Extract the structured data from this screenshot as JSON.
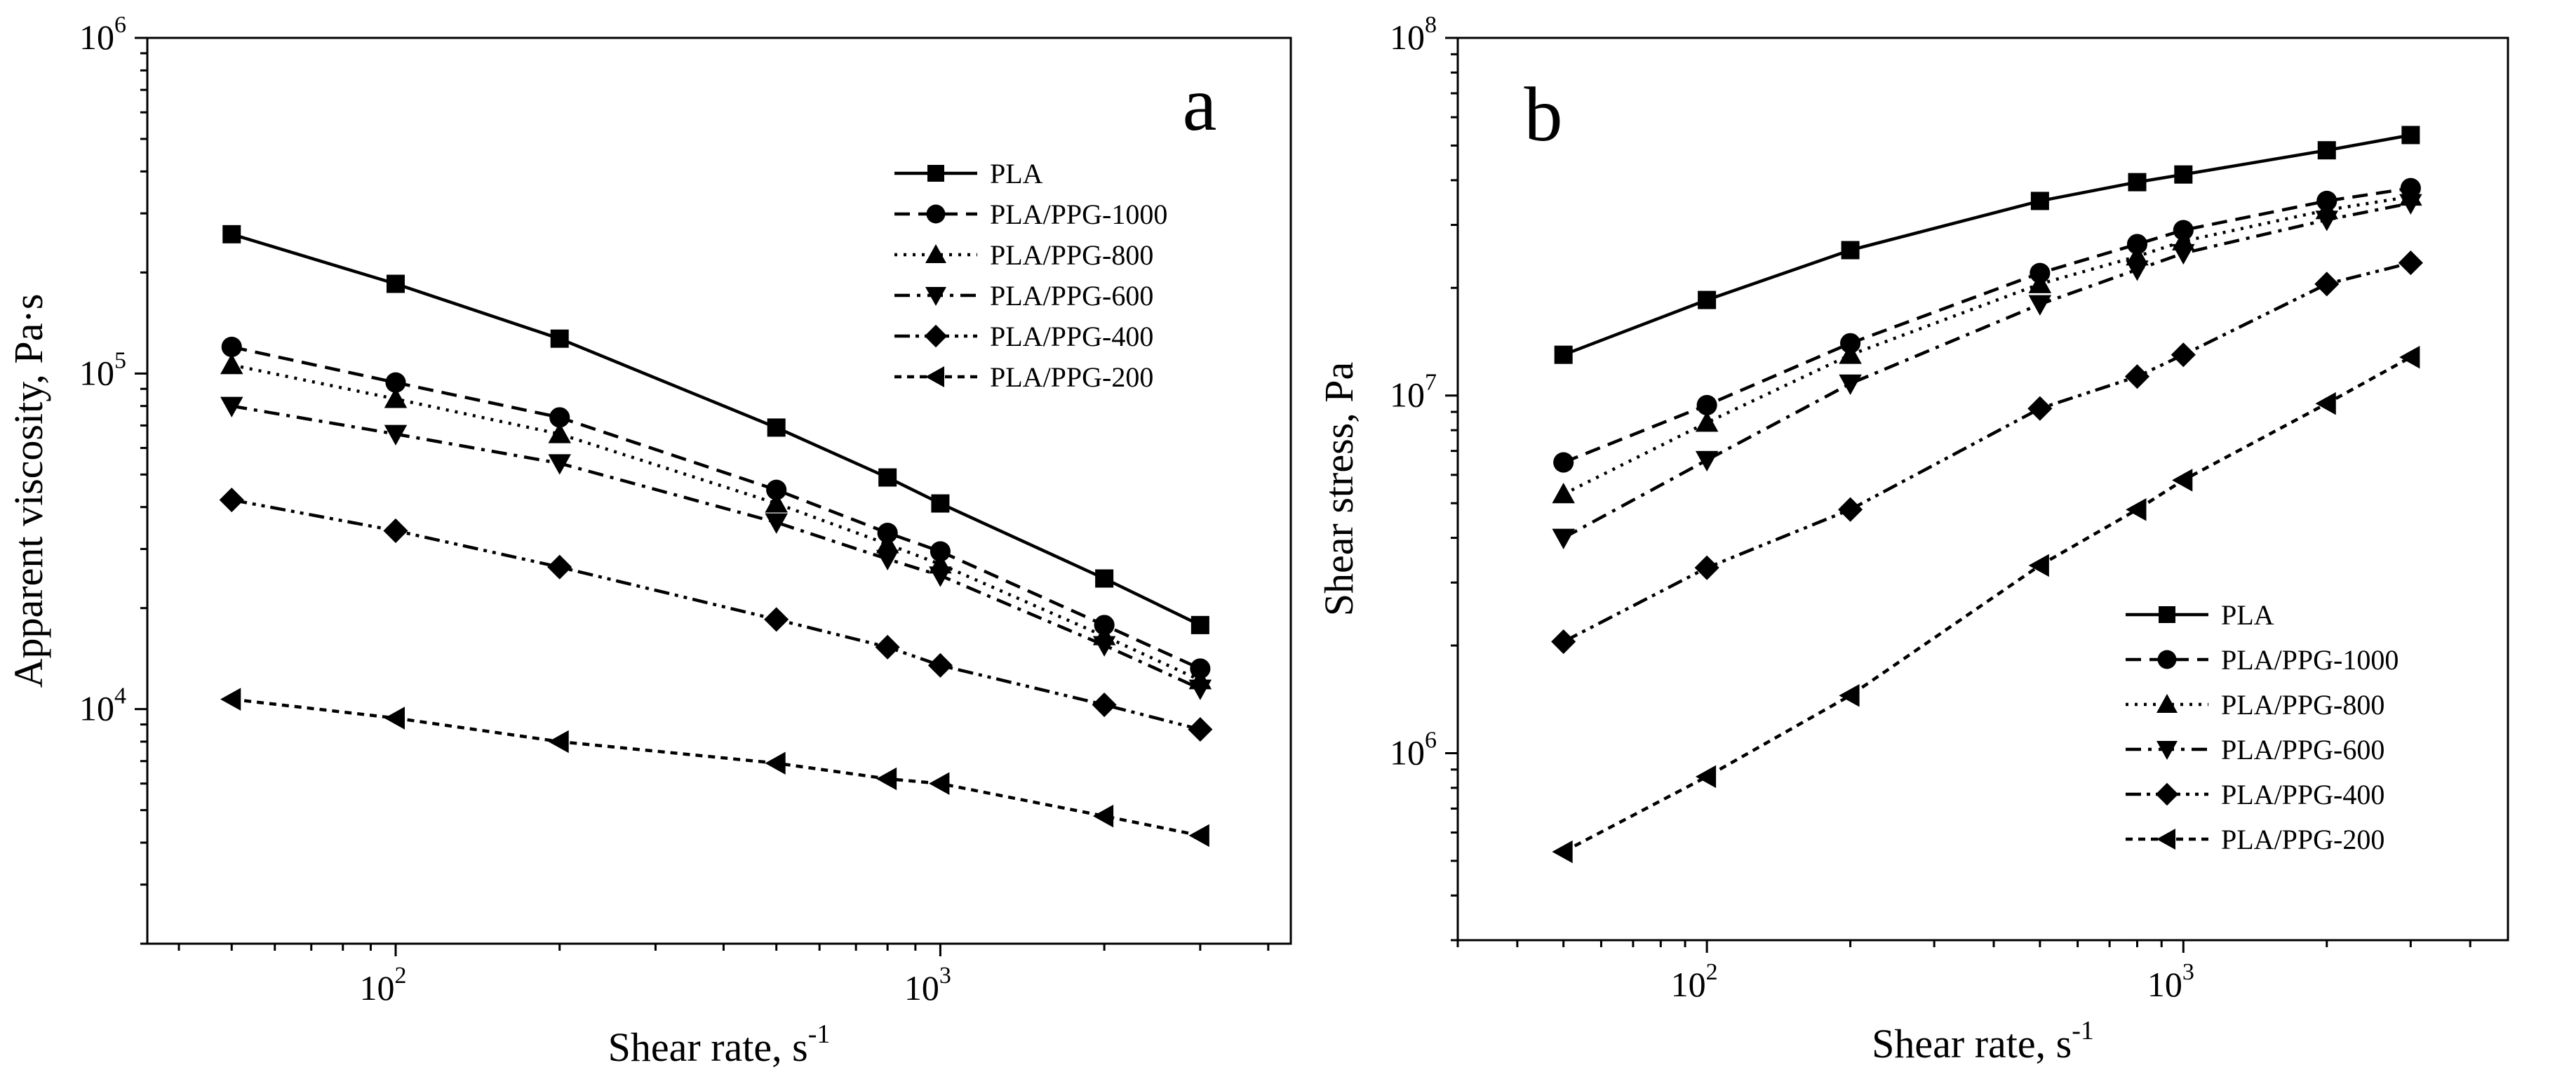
{
  "colors": {
    "ink": "#000000",
    "background": "#ffffff"
  },
  "chart_data": [
    {
      "type": "line",
      "panel_label": "a",
      "xlabel": "Shear rate, s",
      "xlabel_sup": "-1",
      "ylabel": "Apparent viscosity, Pa·s",
      "xscale": "log",
      "yscale": "log",
      "xlim": [
        35,
        4400
      ],
      "ylim": [
        2000,
        1000000
      ],
      "x_ticks": [
        {
          "value": 100,
          "base": "10",
          "exp": "2"
        },
        {
          "value": 1000,
          "base": "10",
          "exp": "3"
        }
      ],
      "y_ticks": [
        {
          "value": 10000,
          "base": "10",
          "exp": "4"
        },
        {
          "value": 100000,
          "base": "10",
          "exp": "5"
        },
        {
          "value": 1000000,
          "base": "10",
          "exp": "6"
        }
      ],
      "legend_position": "top-right",
      "x": [
        50,
        100,
        200,
        500,
        800,
        1000,
        2000,
        3000
      ],
      "series": [
        {
          "name": "PLA",
          "marker": "square",
          "dash": "solid",
          "values": [
            260000,
            185000,
            127000,
            69000,
            49000,
            41000,
            24500,
            17800
          ]
        },
        {
          "name": "PLA/PPG-1000",
          "marker": "circle",
          "dash": "dash",
          "values": [
            120000,
            94000,
            74000,
            45000,
            33500,
            29500,
            17800,
            13200
          ]
        },
        {
          "name": "PLA/PPG-800",
          "marker": "triangle-up",
          "dash": "dot",
          "values": [
            106000,
            84000,
            66000,
            41000,
            31000,
            27000,
            16500,
            12200
          ]
        },
        {
          "name": "PLA/PPG-600",
          "marker": "triangle-down",
          "dash": "dashdot",
          "values": [
            80000,
            66000,
            54000,
            36000,
            28000,
            25000,
            15500,
            11500
          ]
        },
        {
          "name": "PLA/PPG-400",
          "marker": "diamond",
          "dash": "dashdotdot",
          "values": [
            42000,
            34000,
            26500,
            18500,
            15300,
            13500,
            10300,
            8700
          ]
        },
        {
          "name": "PLA/PPG-200",
          "marker": "triangle-left",
          "dash": "shortdash",
          "values": [
            10700,
            9400,
            8000,
            6900,
            6200,
            6000,
            4800,
            4200
          ]
        }
      ]
    },
    {
      "type": "line",
      "panel_label": "b",
      "xlabel": "Shear rate, s",
      "xlabel_sup": "-1",
      "ylabel": "Shear stress, Pa",
      "xscale": "log",
      "yscale": "log",
      "xlim": [
        30,
        4800
      ],
      "ylim": [
        300000,
        100000000
      ],
      "x_ticks": [
        {
          "value": 100,
          "base": "10",
          "exp": "2"
        },
        {
          "value": 1000,
          "base": "10",
          "exp": "3"
        }
      ],
      "y_ticks": [
        {
          "value": 1000000,
          "base": "10",
          "exp": "6"
        },
        {
          "value": 10000000,
          "base": "10",
          "exp": "7"
        },
        {
          "value": 100000000,
          "base": "10",
          "exp": "8"
        }
      ],
      "legend_position": "bottom-right",
      "x": [
        50,
        100,
        200,
        500,
        800,
        1000,
        2000,
        3000
      ],
      "series": [
        {
          "name": "PLA",
          "marker": "square",
          "dash": "solid",
          "values": [
            13000000,
            18500000,
            25500000,
            35000000,
            39500000,
            41500000,
            48500000,
            53500000
          ]
        },
        {
          "name": "PLA/PPG-1000",
          "marker": "circle",
          "dash": "dash",
          "values": [
            6500000,
            9400000,
            14000000,
            22000000,
            26500000,
            29000000,
            35000000,
            38000000
          ]
        },
        {
          "name": "PLA/PPG-800",
          "marker": "triangle-up",
          "dash": "dot",
          "values": [
            5300000,
            8400000,
            13000000,
            20500000,
            24500000,
            27000000,
            33000000,
            36000000
          ]
        },
        {
          "name": "PLA/PPG-600",
          "marker": "triangle-down",
          "dash": "dashdot",
          "values": [
            4000000,
            6600000,
            10800000,
            18000000,
            22500000,
            25000000,
            31000000,
            34500000
          ]
        },
        {
          "name": "PLA/PPG-400",
          "marker": "diamond",
          "dash": "dashdotdot",
          "values": [
            2050000,
            3300000,
            4800000,
            9200000,
            11300000,
            13000000,
            20500000,
            23500000
          ]
        },
        {
          "name": "PLA/PPG-200",
          "marker": "triangle-left",
          "dash": "shortdash",
          "values": [
            530000,
            860000,
            1450000,
            3350000,
            4800000,
            5800000,
            9500000,
            12800000
          ]
        }
      ]
    }
  ]
}
